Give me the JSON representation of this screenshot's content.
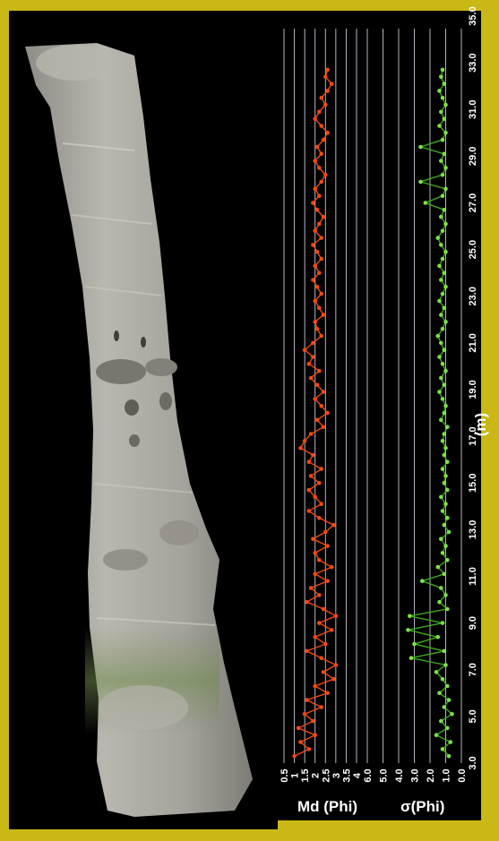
{
  "chart_data": [
    {
      "type": "line",
      "name_text": "Md (Phi)",
      "xlabel": "(m)",
      "depth_ticks": [
        "3.0",
        "5.0",
        "7.0",
        "9.0",
        "11.0",
        "13.0",
        "15.0",
        "17.0",
        "19.0",
        "21.0",
        "23.0",
        "25.0",
        "27.0",
        "29.0",
        "31.0",
        "33.0",
        "35.0"
      ],
      "value_ticks": [
        "0.5",
        "1",
        "1.5",
        "2",
        "2.5",
        "3",
        "3.5",
        "4"
      ],
      "ylim": [
        0.5,
        4
      ],
      "xlim": [
        3,
        35
      ],
      "color": "#f04a12",
      "points": [
        [
          3.3,
          1.0
        ],
        [
          3.6,
          1.7
        ],
        [
          3.9,
          1.3
        ],
        [
          4.2,
          2.0
        ],
        [
          4.5,
          1.2
        ],
        [
          4.8,
          1.9
        ],
        [
          5.1,
          1.5
        ],
        [
          5.4,
          2.3
        ],
        [
          5.7,
          1.6
        ],
        [
          6.0,
          2.6
        ],
        [
          6.3,
          2.0
        ],
        [
          6.6,
          2.9
        ],
        [
          6.9,
          2.4
        ],
        [
          7.2,
          3.0
        ],
        [
          7.5,
          2.3
        ],
        [
          7.8,
          1.6
        ],
        [
          8.1,
          2.5
        ],
        [
          8.4,
          2.0
        ],
        [
          8.7,
          2.8
        ],
        [
          9.0,
          2.2
        ],
        [
          9.3,
          3.0
        ],
        [
          9.6,
          2.4
        ],
        [
          9.9,
          1.6
        ],
        [
          10.2,
          2.2
        ],
        [
          10.5,
          1.8
        ],
        [
          10.8,
          2.6
        ],
        [
          11.1,
          2.0
        ],
        [
          11.4,
          2.8
        ],
        [
          11.7,
          2.2
        ],
        [
          12.0,
          2.0
        ],
        [
          12.3,
          2.6
        ],
        [
          12.6,
          1.9
        ],
        [
          12.9,
          2.5
        ],
        [
          13.2,
          2.9
        ],
        [
          13.5,
          2.2
        ],
        [
          13.8,
          1.7
        ],
        [
          14.1,
          2.3
        ],
        [
          14.4,
          2.0
        ],
        [
          14.7,
          1.7
        ],
        [
          15.0,
          2.2
        ],
        [
          15.3,
          1.8
        ],
        [
          15.6,
          2.3
        ],
        [
          15.9,
          1.7
        ],
        [
          16.2,
          1.9
        ],
        [
          16.5,
          1.3
        ],
        [
          16.8,
          1.5
        ],
        [
          17.1,
          1.8
        ],
        [
          17.4,
          2.4
        ],
        [
          17.7,
          2.1
        ],
        [
          18.0,
          2.6
        ],
        [
          18.3,
          2.3
        ],
        [
          18.6,
          2.0
        ],
        [
          18.9,
          2.4
        ],
        [
          19.2,
          2.1
        ],
        [
          19.5,
          1.8
        ],
        [
          19.8,
          2.2
        ],
        [
          20.1,
          1.7
        ],
        [
          20.4,
          1.9
        ],
        [
          20.7,
          1.5
        ],
        [
          21.0,
          1.9
        ],
        [
          21.3,
          2.3
        ],
        [
          21.6,
          2.1
        ],
        [
          21.9,
          2.0
        ],
        [
          22.2,
          2.4
        ],
        [
          22.5,
          2.2
        ],
        [
          22.8,
          2.0
        ],
        [
          23.1,
          2.3
        ],
        [
          23.4,
          2.1
        ],
        [
          23.7,
          1.9
        ],
        [
          24.0,
          2.2
        ],
        [
          24.3,
          2.0
        ],
        [
          24.6,
          2.3
        ],
        [
          24.9,
          2.1
        ],
        [
          25.2,
          1.9
        ],
        [
          25.5,
          2.3
        ],
        [
          25.8,
          2.0
        ],
        [
          26.1,
          2.2
        ],
        [
          26.4,
          2.4
        ],
        [
          26.7,
          2.1
        ],
        [
          27.0,
          1.9
        ],
        [
          27.3,
          2.2
        ],
        [
          27.6,
          2.0
        ],
        [
          27.9,
          2.3
        ],
        [
          28.2,
          2.5
        ],
        [
          28.5,
          2.2
        ],
        [
          28.8,
          2.0
        ],
        [
          29.1,
          2.3
        ],
        [
          29.4,
          2.1
        ],
        [
          29.7,
          2.4
        ],
        [
          30.0,
          2.6
        ],
        [
          30.3,
          2.3
        ],
        [
          30.6,
          2.0
        ],
        [
          30.9,
          2.2
        ],
        [
          31.2,
          2.5
        ],
        [
          31.5,
          2.3
        ],
        [
          31.8,
          2.6
        ],
        [
          32.1,
          2.8
        ],
        [
          32.4,
          2.5
        ],
        [
          32.7,
          2.6
        ]
      ]
    },
    {
      "type": "line",
      "name_text": "σ(Phi)",
      "value_ticks": [
        "0.0",
        "1.0",
        "2.0",
        "3.0",
        "4.0",
        "5.0",
        "6.0"
      ],
      "ylim": [
        0,
        6
      ],
      "xlim": [
        3,
        35
      ],
      "color": "#3aaa1a",
      "marker_color": "#7ee04a",
      "points": [
        [
          3.3,
          0.8
        ],
        [
          3.6,
          1.2
        ],
        [
          3.9,
          0.7
        ],
        [
          4.2,
          1.6
        ],
        [
          4.5,
          0.9
        ],
        [
          4.8,
          1.3
        ],
        [
          5.1,
          0.6
        ],
        [
          5.4,
          1.1
        ],
        [
          5.7,
          0.8
        ],
        [
          6.0,
          1.4
        ],
        [
          6.3,
          0.9
        ],
        [
          6.6,
          1.2
        ],
        [
          6.9,
          1.6
        ],
        [
          7.2,
          1.0
        ],
        [
          7.5,
          3.2
        ],
        [
          7.8,
          1.1
        ],
        [
          8.1,
          3.0
        ],
        [
          8.4,
          1.5
        ],
        [
          8.7,
          3.4
        ],
        [
          9.0,
          1.2
        ],
        [
          9.3,
          3.3
        ],
        [
          9.6,
          0.9
        ],
        [
          9.9,
          1.4
        ],
        [
          10.2,
          1.0
        ],
        [
          10.5,
          1.3
        ],
        [
          10.8,
          2.5
        ],
        [
          11.1,
          1.1
        ],
        [
          11.4,
          1.5
        ],
        [
          11.7,
          0.9
        ],
        [
          12.0,
          1.2
        ],
        [
          12.3,
          1.0
        ],
        [
          12.6,
          1.3
        ],
        [
          12.9,
          0.8
        ],
        [
          13.2,
          1.1
        ],
        [
          13.5,
          0.9
        ],
        [
          13.8,
          1.2
        ],
        [
          14.1,
          1.0
        ],
        [
          14.4,
          1.3
        ],
        [
          14.7,
          0.9
        ],
        [
          15.0,
          1.1
        ],
        [
          15.3,
          1.0
        ],
        [
          15.6,
          1.2
        ],
        [
          15.9,
          0.9
        ],
        [
          16.2,
          1.1
        ],
        [
          16.5,
          1.0
        ],
        [
          16.8,
          1.2
        ],
        [
          17.1,
          1.1
        ],
        [
          17.4,
          0.9
        ],
        [
          17.7,
          1.3
        ],
        [
          18.0,
          1.1
        ],
        [
          18.3,
          1.0
        ],
        [
          18.6,
          1.2
        ],
        [
          18.9,
          1.4
        ],
        [
          19.2,
          1.1
        ],
        [
          19.5,
          1.3
        ],
        [
          19.8,
          1.0
        ],
        [
          20.1,
          1.2
        ],
        [
          20.4,
          1.4
        ],
        [
          20.7,
          1.1
        ],
        [
          21.0,
          1.3
        ],
        [
          21.3,
          1.5
        ],
        [
          21.6,
          1.2
        ],
        [
          21.9,
          1.0
        ],
        [
          22.2,
          1.3
        ],
        [
          22.5,
          1.1
        ],
        [
          22.8,
          1.4
        ],
        [
          23.1,
          1.2
        ],
        [
          23.4,
          1.0
        ],
        [
          23.7,
          1.3
        ],
        [
          24.0,
          1.1
        ],
        [
          24.3,
          1.4
        ],
        [
          24.6,
          1.2
        ],
        [
          24.9,
          1.0
        ],
        [
          25.2,
          1.3
        ],
        [
          25.5,
          1.5
        ],
        [
          25.8,
          1.2
        ],
        [
          26.1,
          1.0
        ],
        [
          26.4,
          1.3
        ],
        [
          26.7,
          1.1
        ],
        [
          27.0,
          2.3
        ],
        [
          27.3,
          1.2
        ],
        [
          27.6,
          1.0
        ],
        [
          27.9,
          2.6
        ],
        [
          28.2,
          1.2
        ],
        [
          28.5,
          1.0
        ],
        [
          28.8,
          1.3
        ],
        [
          29.1,
          1.1
        ],
        [
          29.4,
          2.6
        ],
        [
          29.7,
          1.2
        ],
        [
          30.0,
          1.0
        ],
        [
          30.3,
          1.4
        ],
        [
          30.6,
          1.1
        ],
        [
          30.9,
          1.3
        ],
        [
          31.2,
          1.0
        ],
        [
          31.5,
          1.2
        ],
        [
          31.8,
          1.4
        ],
        [
          32.1,
          1.1
        ],
        [
          32.4,
          1.3
        ],
        [
          32.7,
          1.2
        ]
      ]
    }
  ]
}
